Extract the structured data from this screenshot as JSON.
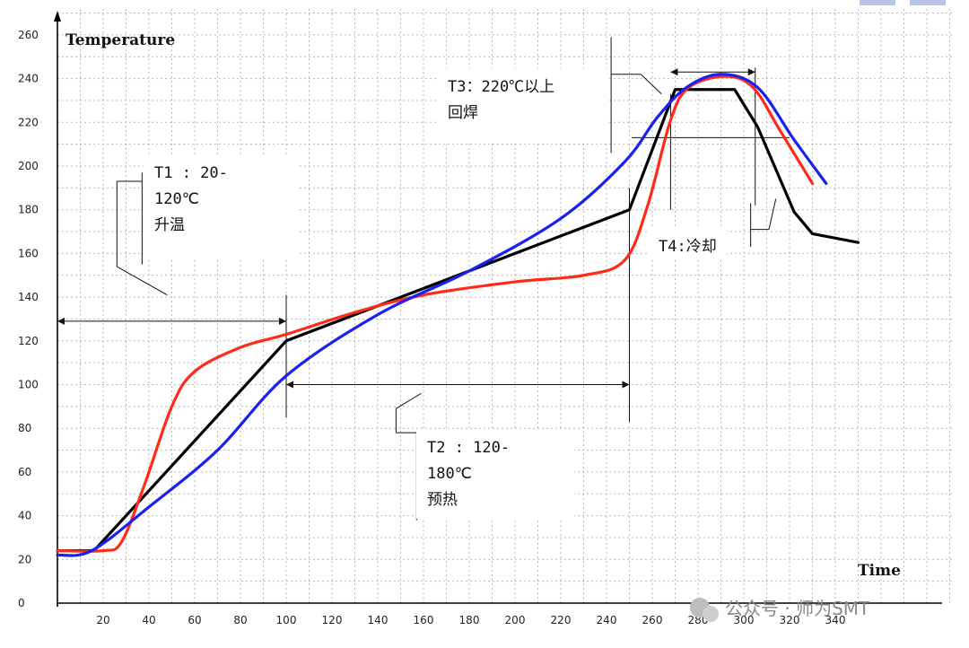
{
  "chart_data": {
    "type": "line",
    "ylabel": "Temperature",
    "xlabel": "Time",
    "xlim": [
      0,
      350
    ],
    "ylim": [
      0,
      270
    ],
    "x_ticks": [
      20,
      40,
      60,
      80,
      100,
      120,
      140,
      160,
      180,
      200,
      220,
      240,
      260,
      280,
      300,
      320,
      340
    ],
    "y_ticks": [
      0,
      20,
      40,
      60,
      80,
      100,
      120,
      140,
      160,
      180,
      200,
      220,
      240,
      260
    ],
    "grid": true,
    "series": [
      {
        "color": "#000000",
        "points": [
          [
            0,
            24
          ],
          [
            16,
            24
          ],
          [
            100,
            120
          ],
          [
            250,
            180
          ],
          [
            270,
            235
          ],
          [
            296,
            235
          ],
          [
            306,
            218
          ],
          [
            322,
            179
          ],
          [
            330,
            169
          ],
          [
            350,
            165
          ]
        ]
      },
      {
        "color": "#ff2a1a",
        "points": [
          [
            0,
            24
          ],
          [
            20,
            24
          ],
          [
            28,
            28
          ],
          [
            38,
            54
          ],
          [
            50,
            90
          ],
          [
            60,
            106
          ],
          [
            80,
            117
          ],
          [
            100,
            123
          ],
          [
            130,
            133
          ],
          [
            160,
            141
          ],
          [
            200,
            147
          ],
          [
            230,
            150
          ],
          [
            248,
            157
          ],
          [
            258,
            182
          ],
          [
            268,
            221
          ],
          [
            276,
            236
          ],
          [
            292,
            241
          ],
          [
            304,
            236
          ],
          [
            316,
            216
          ],
          [
            330,
            192
          ]
        ]
      },
      {
        "color": "#1a20ee",
        "points": [
          [
            0,
            22
          ],
          [
            15,
            24
          ],
          [
            40,
            44
          ],
          [
            70,
            70
          ],
          [
            100,
            104
          ],
          [
            140,
            132
          ],
          [
            180,
            152
          ],
          [
            220,
            176
          ],
          [
            248,
            202
          ],
          [
            262,
            222
          ],
          [
            275,
            236
          ],
          [
            290,
            242
          ],
          [
            306,
            236
          ],
          [
            322,
            212
          ],
          [
            336,
            192
          ]
        ]
      }
    ],
    "annotations": [
      {
        "id": "t1",
        "lines": [
          "T1   :    20-",
          "120℃",
          "升温"
        ]
      },
      {
        "id": "t2",
        "lines": [
          "T2   :    120-",
          "180℃",
          "预热"
        ]
      },
      {
        "id": "t3",
        "lines": [
          "T3：220℃以上",
          "回焊"
        ]
      },
      {
        "id": "t4",
        "lines": [
          "T4:冷却"
        ]
      }
    ]
  },
  "watermark": "公众号 · 师为SMT"
}
